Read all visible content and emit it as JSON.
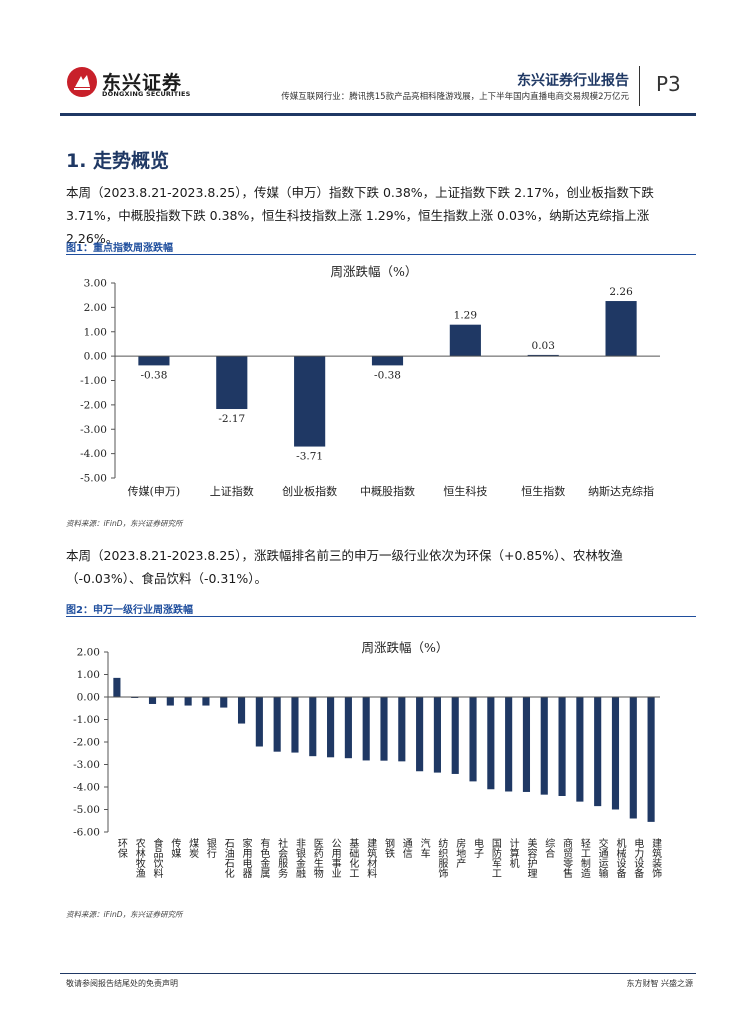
{
  "header": {
    "brand_cn": "东兴证券",
    "brand_en": "DONGXING SECURITIES",
    "report_brand": "东兴证券行业报告",
    "subtitle": "传媒互联网行业：腾讯携15款产品亮相科隆游戏展，上下半年国内直播电商交易规模2万亿元",
    "page": "P3",
    "colors": {
      "brand_blue": "#1f3864",
      "logo_red": "#c8202a"
    }
  },
  "section": {
    "title": "1. 走势概览",
    "para1": "本周（2023.8.21-2023.8.25），传媒（申万）指数下跌 0.38%，上证指数下跌 2.17%，创业板指数下跌 3.71%，中概股指数下跌 0.38%，恒生科技指数上涨 1.29%，恒生指数上涨 0.03%，纳斯达克综指上涨 2.26%。",
    "para2": "本周（2023.8.21-2023.8.25），涨跌幅排名前三的申万一级行业依次为环保（+0.85%）、农林牧渔（-0.03%）、食品饮料（-0.31%）。"
  },
  "figure1": {
    "caption": "图1：重点指数周涨跌幅",
    "source": "资料来源：iFinD，东兴证券研究所"
  },
  "figure2": {
    "caption": "图2：申万一级行业周涨跌幅",
    "source": "资料来源：iFinD，东兴证券研究所"
  },
  "chart_data": [
    {
      "type": "bar",
      "title": "周涨跌幅（%）",
      "categories": [
        "传媒(申万)",
        "上证指数",
        "创业板指数",
        "中概股指数",
        "恒生科技",
        "恒生指数",
        "纳斯达克综指"
      ],
      "values": [
        -0.38,
        -2.17,
        -3.71,
        -0.38,
        1.29,
        0.03,
        2.26
      ],
      "data_labels": [
        "-0.38",
        "-2.17",
        "-3.71",
        "-0.38",
        "1.29",
        "0.03",
        "2.26"
      ],
      "yticks": [
        "3.00",
        "2.00",
        "1.00",
        "0.00",
        "-1.00",
        "-2.00",
        "-3.00",
        "-4.00",
        "-5.00"
      ],
      "ylim": [
        -5,
        3
      ],
      "grid": false,
      "bar_color": "#1f3864"
    },
    {
      "type": "bar",
      "title": "周涨跌幅（%）",
      "categories": [
        "环保",
        "农林牧渔",
        "食品饮料",
        "传媒",
        "煤炭",
        "银行",
        "石油石化",
        "家用电器",
        "有色金属",
        "社会服务",
        "非银金融",
        "医药生物",
        "公用事业",
        "基础化工",
        "建筑材料",
        "钢铁",
        "通信",
        "汽车",
        "纺织服饰",
        "房地产",
        "电子",
        "国防军工",
        "计算机",
        "美容护理",
        "综合",
        "商贸零售",
        "轻工制造",
        "交通运输",
        "机械设备",
        "电力设备",
        "建筑装饰"
      ],
      "values": [
        0.85,
        -0.03,
        -0.31,
        -0.38,
        -0.38,
        -0.38,
        -0.47,
        -1.18,
        -2.2,
        -2.43,
        -2.47,
        -2.63,
        -2.68,
        -2.72,
        -2.82,
        -2.83,
        -2.86,
        -3.3,
        -3.36,
        -3.42,
        -3.75,
        -4.1,
        -4.2,
        -4.22,
        -4.34,
        -4.4,
        -4.65,
        -4.85,
        -5.0,
        -5.4,
        -5.55
      ],
      "yticks": [
        "2.00",
        "1.00",
        "0.00",
        "-1.00",
        "-2.00",
        "-3.00",
        "-4.00",
        "-5.00",
        "-6.00"
      ],
      "ylim": [
        -6,
        2
      ],
      "grid": false,
      "bar_color": "#1f3864"
    }
  ],
  "footer": {
    "left": "敬请参阅报告结尾处的免责声明",
    "right": "东方财智 兴盛之源"
  }
}
